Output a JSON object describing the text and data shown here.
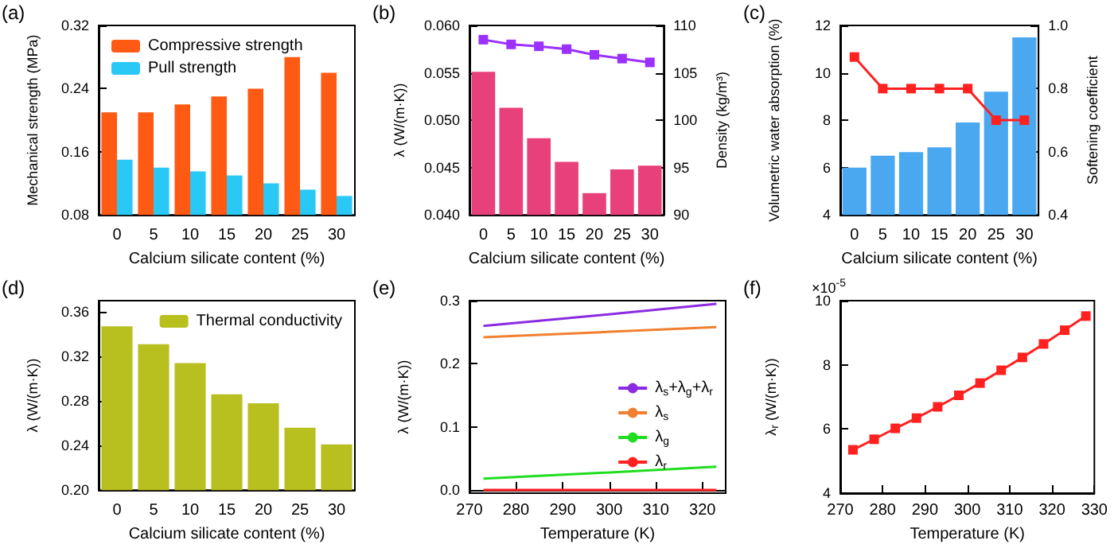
{
  "chart_data": [
    {
      "type": "bar",
      "title": "(a)",
      "xlabel": "Calcium silicate content (%)",
      "ylabel": "Mechanical strength (MPa)",
      "categories": [
        "0",
        "5",
        "10",
        "15",
        "20",
        "25",
        "30"
      ],
      "series": [
        {
          "name": "Compressive strength",
          "color": "#ff5a14",
          "values": [
            0.21,
            0.21,
            0.22,
            0.23,
            0.24,
            0.28,
            0.26
          ]
        },
        {
          "name": "Pull strength",
          "color": "#29c8f5",
          "values": [
            0.15,
            0.14,
            0.135,
            0.13,
            0.12,
            0.112,
            0.104
          ]
        }
      ],
      "ylim": [
        0.08,
        0.32
      ],
      "yticks": [
        0.08,
        0.16,
        0.24,
        0.32
      ],
      "legend": "top left",
      "grid": false
    },
    {
      "type": "bar",
      "title": "(b)",
      "xlabel": "Calcium silicate content (%)",
      "ylabel": "λ (W/(m·K))",
      "y2label": "Density (kg/m³)",
      "categories": [
        "0",
        "5",
        "10",
        "15",
        "20",
        "25",
        "30"
      ],
      "series": [
        {
          "color": "#e8407a",
          "values": [
            0.0551,
            0.0513,
            0.0481,
            0.0456,
            0.0423,
            0.0448,
            0.0452
          ]
        },
        {
          "type": "line",
          "axis": "y2",
          "color": "#9b30ff",
          "values": [
            108.5,
            108.0,
            107.8,
            107.5,
            106.9,
            106.5,
            106.1
          ]
        }
      ],
      "ylim": [
        0.04,
        0.06
      ],
      "yticks": [
        {
          "value": 0.04,
          "label": "0.040"
        },
        {
          "value": 0.045,
          "label": "0.045"
        },
        {
          "value": 0.05,
          "label": "0.050"
        },
        {
          "value": 0.055,
          "label": "0.055"
        },
        {
          "value": 0.06,
          "label": "0.060"
        }
      ],
      "y2lim": [
        90,
        110
      ],
      "y2ticks": [
        90,
        95,
        100,
        105,
        110
      ],
      "marker": "square",
      "grid": false
    },
    {
      "type": "bar",
      "title": "(c)",
      "xlabel": "Calcium silicate content (%)",
      "ylabel": "Volumetric water absorption (%)",
      "y2label": "Softening coefficient",
      "categories": [
        "0",
        "5",
        "10",
        "15",
        "20",
        "25",
        "30"
      ],
      "series": [
        {
          "color": "#4aa8f0",
          "values": [
            6.0,
            6.5,
            6.65,
            6.85,
            7.9,
            9.2,
            11.5
          ]
        },
        {
          "type": "line",
          "axis": "y2",
          "color": "#ff2020",
          "values": [
            0.9,
            0.8,
            0.8,
            0.8,
            0.8,
            0.7,
            0.7
          ]
        }
      ],
      "ylim": [
        4,
        12
      ],
      "yticks": [
        4,
        6,
        8,
        10,
        12
      ],
      "y2lim": [
        0.4,
        1.0
      ],
      "y2ticks": [
        0.4,
        0.6,
        0.8,
        {
          "value": 1.0,
          "label": "1.0"
        }
      ],
      "marker": "square",
      "grid": false
    },
    {
      "type": "bar",
      "title": "(d)",
      "xlabel": "Calcium silicate content (%)",
      "ylabel": "λ (W/(m·K))",
      "categories": [
        "0",
        "5",
        "10",
        "15",
        "20",
        "25",
        "30"
      ],
      "series": [
        {
          "name": "Thermal conductivity",
          "color": "#b8c020",
          "values": [
            0.347,
            0.331,
            0.314,
            0.286,
            0.278,
            0.256,
            0.241
          ]
        }
      ],
      "ylim": [
        0.2,
        0.37
      ],
      "yticks": [
        {
          "value": 0.2,
          "label": "0.20"
        },
        {
          "value": 0.24,
          "label": "0.24"
        },
        {
          "value": 0.28,
          "label": "0.28"
        },
        {
          "value": 0.32,
          "label": "0.32"
        },
        {
          "value": 0.36,
          "label": "0.36"
        }
      ],
      "legend": "top right",
      "grid": false
    },
    {
      "type": "line",
      "title": "(e)",
      "xlabel": "Temperature (K)",
      "ylabel": "λ (W/(m·K))",
      "x": [
        273,
        298,
        323
      ],
      "series": [
        {
          "name": "λ$_{s}$+λ$_{g}$+λ$_{r}$",
          "color": "#8a2be2",
          "values": [
            0.26,
            0.277,
            0.295
          ]
        },
        {
          "name": "λ$_{s}$",
          "color": "#f08030",
          "values": [
            0.242,
            0.25,
            0.258
          ]
        },
        {
          "name": "λ$_{g}$",
          "color": "#20dd20",
          "values": [
            0.018,
            0.027,
            0.037
          ]
        },
        {
          "name": "λ$_{r}$",
          "color": "#ff2020",
          "values": [
            0,
            0,
            0
          ]
        }
      ],
      "xlim": [
        270,
        325
      ],
      "xticks": [
        270,
        280,
        290,
        300,
        310,
        320
      ],
      "ylim": [
        -0.005,
        0.3
      ],
      "yticks": [
        {
          "value": 0,
          "label": "0.0"
        },
        0.1,
        0.2,
        0.3
      ],
      "legend": "right",
      "marker": "none",
      "grid": false
    },
    {
      "type": "line",
      "title": "(f)",
      "xlabel": "Temperature (K)",
      "ylabel": "λ$_{r}$ (W/(m·K))",
      "annotations": [
        "×10$^{-5}$"
      ],
      "x": [
        273,
        278,
        283,
        288,
        293,
        298,
        303,
        308,
        313,
        318,
        323,
        328
      ],
      "series": [
        {
          "color": "#ff2020",
          "values": [
            5.35,
            5.68,
            6.02,
            6.34,
            6.69,
            7.05,
            7.43,
            7.83,
            8.23,
            8.65,
            9.08,
            9.52
          ]
        }
      ],
      "xlim": [
        270,
        330
      ],
      "xticks": [
        270,
        280,
        290,
        300,
        310,
        320,
        330
      ],
      "ylim": [
        4,
        10
      ],
      "yticks": [
        4,
        6,
        8,
        10
      ],
      "marker": "square",
      "grid": false
    }
  ]
}
